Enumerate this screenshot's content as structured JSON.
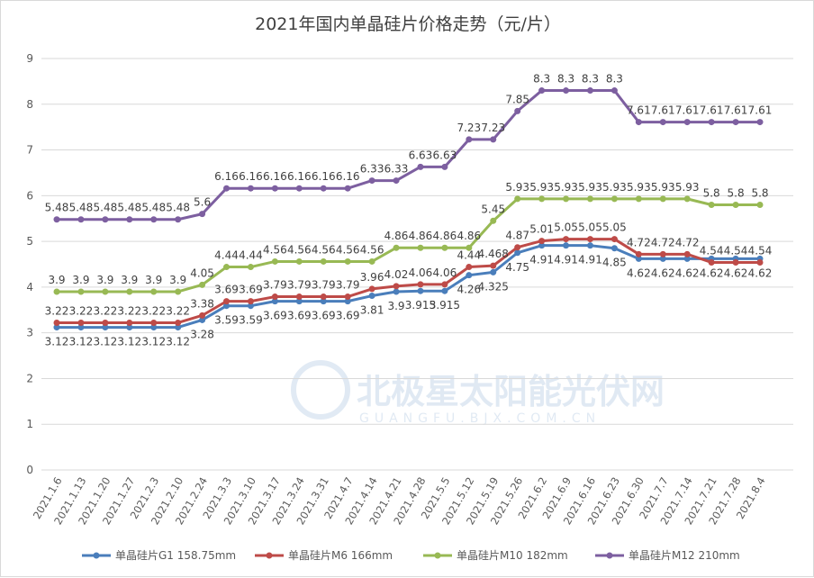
{
  "chart_data": {
    "type": "line",
    "title": "2021年国内单晶硅片价格走势（元/片）",
    "xlabel": "",
    "ylabel": "",
    "ylim": [
      0,
      9
    ],
    "yticks": [
      "0",
      "1",
      "2",
      "3",
      "4",
      "5",
      "6",
      "7",
      "8",
      "9"
    ],
    "grid": true,
    "legend_position": "bottom",
    "categories": [
      "2021.1.6",
      "2021.1.13",
      "2021.1.20",
      "2021.1.27",
      "2021.2.3",
      "2021.2.10",
      "2021.2.24",
      "2021.3.3",
      "2021.3.10",
      "2021.3.17",
      "2021.3.24",
      "2021.3.31",
      "2021.4.7",
      "2021.4.14",
      "2021.4.21",
      "2021.4.28",
      "2021.5.5",
      "2021.5.12",
      "2021.5.19",
      "2021.5.26",
      "2021.6.2",
      "2021.6.9",
      "2021.6.16",
      "2021.6.23",
      "2021.6.30",
      "2021.7.7",
      "2021.7.14",
      "2021.7.21",
      "2021.7.28",
      "2021.8.4"
    ],
    "series": [
      {
        "name": "单晶硅片G1 158.75mm",
        "color": "#4a7ebb",
        "label_pos": "below",
        "values": [
          3.12,
          3.12,
          3.12,
          3.12,
          3.12,
          3.12,
          3.28,
          3.59,
          3.59,
          3.69,
          3.69,
          3.69,
          3.69,
          3.81,
          3.9,
          3.915,
          3.915,
          4.26,
          4.325,
          4.75,
          4.91,
          4.91,
          4.91,
          4.85,
          4.62,
          4.62,
          4.62,
          4.62,
          4.62,
          4.62
        ]
      },
      {
        "name": "单晶硅片M6 166mm",
        "color": "#be4b48",
        "label_pos": "above",
        "values": [
          3.22,
          3.22,
          3.22,
          3.22,
          3.22,
          3.22,
          3.38,
          3.69,
          3.69,
          3.79,
          3.79,
          3.79,
          3.79,
          3.96,
          4.02,
          4.06,
          4.06,
          4.44,
          4.468,
          4.87,
          5.01,
          5.05,
          5.05,
          5.05,
          4.72,
          4.72,
          4.72,
          4.54,
          4.54,
          4.54
        ]
      },
      {
        "name": "单晶硅片M10 182mm",
        "color": "#98b954",
        "label_pos": "above",
        "values": [
          3.9,
          3.9,
          3.9,
          3.9,
          3.9,
          3.9,
          4.05,
          4.44,
          4.44,
          4.56,
          4.56,
          4.56,
          4.56,
          4.56,
          4.86,
          4.86,
          4.86,
          4.86,
          5.45,
          5.93,
          5.93,
          5.93,
          5.93,
          5.93,
          5.93,
          5.93,
          5.93,
          5.8,
          5.8,
          5.8
        ]
      },
      {
        "name": "单晶硅片M12 210mm",
        "color": "#7d5fa0",
        "label_pos": "above",
        "values": [
          5.48,
          5.48,
          5.48,
          5.48,
          5.48,
          5.48,
          5.6,
          6.16,
          6.16,
          6.16,
          6.16,
          6.16,
          6.16,
          6.33,
          6.33,
          6.63,
          6.63,
          7.23,
          7.23,
          7.85,
          8.3,
          8.3,
          8.3,
          8.3,
          7.61,
          7.61,
          7.61,
          7.61,
          7.61,
          7.61
        ]
      }
    ]
  },
  "watermark": {
    "name": "北极星太阳能光伏网",
    "url": "GUANGFU.BJX.COM.CN"
  }
}
